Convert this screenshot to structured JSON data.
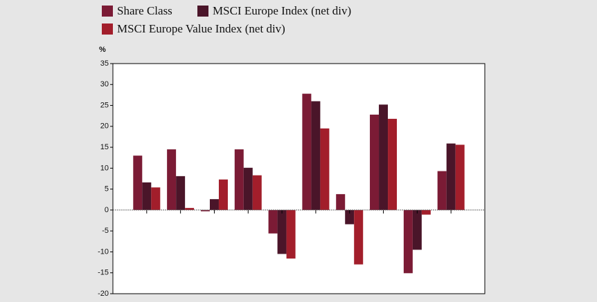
{
  "chart_data": {
    "type": "bar",
    "y_label": "%",
    "categories": [
      null,
      null,
      null,
      null,
      null,
      null,
      null,
      null,
      null,
      null
    ],
    "series": [
      {
        "name": "Share Class",
        "color": "#7b1b35",
        "values": [
          13,
          14.5,
          -0.3,
          14.5,
          -5.6,
          27.8,
          3.8,
          22.8,
          -15.1,
          9.3
        ]
      },
      {
        "name": "MSCI Europe Index (net div)",
        "color": "#4a1529",
        "values": [
          6.6,
          8.1,
          2.6,
          10.1,
          -10.5,
          26,
          -3.4,
          25.2,
          -9.5,
          15.9
        ]
      },
      {
        "name": "MSCI Europe Value Index (net div)",
        "color": "#a21e2b",
        "values": [
          5.4,
          0.5,
          7.3,
          8.3,
          -11.6,
          19.5,
          -13,
          21.8,
          -1.1,
          15.6
        ]
      }
    ],
    "ylim": [
      -20,
      35
    ],
    "yticks": [
      -20,
      -15,
      -10,
      -5,
      0,
      5,
      10,
      15,
      20,
      25,
      30,
      35
    ]
  }
}
